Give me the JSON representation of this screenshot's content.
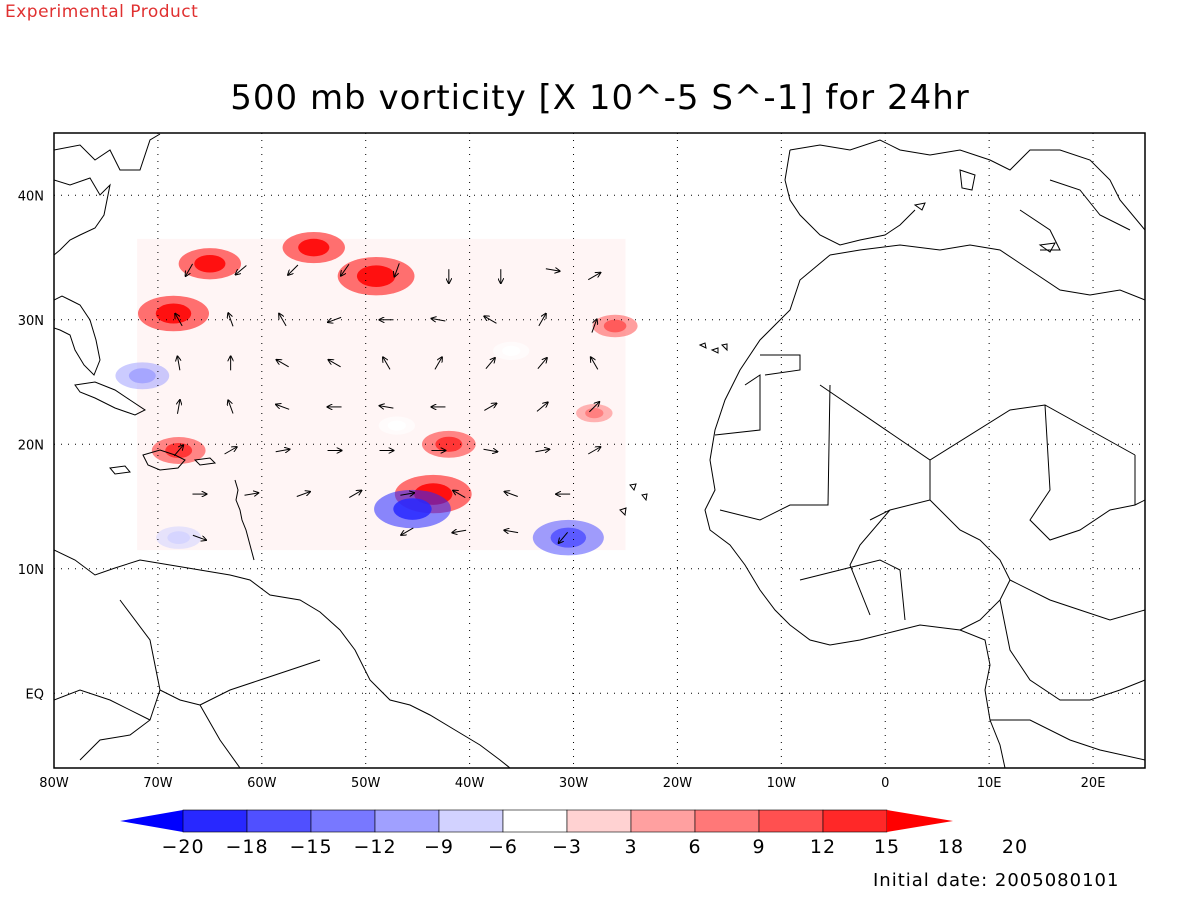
{
  "header": {
    "tag": "Experimental Product",
    "tag_color": "#e03030",
    "title": "500 mb vorticity [X 10^-5 S^-1] for 24hr"
  },
  "map": {
    "projection": "lat-lon",
    "lon_range": [
      -80,
      25
    ],
    "lat_range": [
      -6,
      45
    ],
    "grid": "dotted",
    "x_ticks": [
      "80W",
      "70W",
      "60W",
      "50W",
      "40W",
      "30W",
      "20W",
      "10W",
      "0",
      "10E",
      "20E"
    ],
    "y_ticks": [
      "40N",
      "30N",
      "20N",
      "10N",
      "EQ"
    ],
    "coastline_color": "#000000",
    "vorticity_features": [
      {
        "lon": -68.5,
        "lat": 30.5,
        "value": 18
      },
      {
        "lon": -65,
        "lat": 34.5,
        "value": 15
      },
      {
        "lon": -55,
        "lat": 35.8,
        "value": 15
      },
      {
        "lon": -49,
        "lat": 33.5,
        "value": 20
      },
      {
        "lon": -71.5,
        "lat": 25.5,
        "value": -12
      },
      {
        "lon": -68,
        "lat": 19.5,
        "value": 12
      },
      {
        "lon": -47,
        "lat": 21.5,
        "value": -6
      },
      {
        "lon": -36,
        "lat": 27.5,
        "value": -6
      },
      {
        "lon": -26,
        "lat": 29.5,
        "value": 9
      },
      {
        "lon": -28,
        "lat": 22.5,
        "value": 6
      },
      {
        "lon": -43.5,
        "lat": 16,
        "value": 20
      },
      {
        "lon": -45.5,
        "lat": 14.8,
        "value": -20
      },
      {
        "lon": -30.5,
        "lat": 12.5,
        "value": -18
      },
      {
        "lon": -42,
        "lat": 20,
        "value": 12
      },
      {
        "lon": -68,
        "lat": 12.5,
        "value": -9
      }
    ],
    "wind_vectors": [
      {
        "lon": -67,
        "lat": 34,
        "dir": 210
      },
      {
        "lon": -62,
        "lat": 34,
        "dir": 230
      },
      {
        "lon": -57,
        "lat": 34,
        "dir": 225
      },
      {
        "lon": -52,
        "lat": 34,
        "dir": 215
      },
      {
        "lon": -47,
        "lat": 34,
        "dir": 200
      },
      {
        "lon": -42,
        "lat": 33.5,
        "dir": 180
      },
      {
        "lon": -37,
        "lat": 33.5,
        "dir": 180
      },
      {
        "lon": -32,
        "lat": 34,
        "dir": 100
      },
      {
        "lon": -28,
        "lat": 33.5,
        "dir": 60
      },
      {
        "lon": -68,
        "lat": 30,
        "dir": 330
      },
      {
        "lon": -63,
        "lat": 30,
        "dir": 340
      },
      {
        "lon": -58,
        "lat": 30,
        "dir": 330
      },
      {
        "lon": -53,
        "lat": 30,
        "dir": 250
      },
      {
        "lon": -48,
        "lat": 30,
        "dir": 270
      },
      {
        "lon": -43,
        "lat": 30,
        "dir": 280
      },
      {
        "lon": -38,
        "lat": 30,
        "dir": 300
      },
      {
        "lon": -33,
        "lat": 30,
        "dir": 30
      },
      {
        "lon": -28,
        "lat": 29.5,
        "dir": 20
      },
      {
        "lon": -68,
        "lat": 26.5,
        "dir": 350
      },
      {
        "lon": -63,
        "lat": 26.5,
        "dir": 0
      },
      {
        "lon": -58,
        "lat": 26.5,
        "dir": 300
      },
      {
        "lon": -53,
        "lat": 26.5,
        "dir": 300
      },
      {
        "lon": -48,
        "lat": 26.5,
        "dir": 330
      },
      {
        "lon": -43,
        "lat": 26.5,
        "dir": 30
      },
      {
        "lon": -38,
        "lat": 26.5,
        "dir": 40
      },
      {
        "lon": -33,
        "lat": 26.5,
        "dir": 40
      },
      {
        "lon": -28,
        "lat": 26.5,
        "dir": 330
      },
      {
        "lon": -68,
        "lat": 23,
        "dir": 10
      },
      {
        "lon": -63,
        "lat": 23,
        "dir": 340
      },
      {
        "lon": -58,
        "lat": 23,
        "dir": 290
      },
      {
        "lon": -53,
        "lat": 23,
        "dir": 270
      },
      {
        "lon": -48,
        "lat": 23,
        "dir": 280
      },
      {
        "lon": -43,
        "lat": 23,
        "dir": 270
      },
      {
        "lon": -38,
        "lat": 23,
        "dir": 60
      },
      {
        "lon": -33,
        "lat": 23,
        "dir": 50
      },
      {
        "lon": -28,
        "lat": 23,
        "dir": 45
      },
      {
        "lon": -68,
        "lat": 19.5,
        "dir": 40
      },
      {
        "lon": -63,
        "lat": 19.5,
        "dir": 60
      },
      {
        "lon": -58,
        "lat": 19.5,
        "dir": 80
      },
      {
        "lon": -53,
        "lat": 19.5,
        "dir": 90
      },
      {
        "lon": -48,
        "lat": 19.5,
        "dir": 90
      },
      {
        "lon": -43,
        "lat": 19.5,
        "dir": 90
      },
      {
        "lon": -38,
        "lat": 19.5,
        "dir": 100
      },
      {
        "lon": -33,
        "lat": 19.5,
        "dir": 80
      },
      {
        "lon": -28,
        "lat": 19.5,
        "dir": 60
      },
      {
        "lon": -66,
        "lat": 16,
        "dir": 90
      },
      {
        "lon": -61,
        "lat": 16,
        "dir": 80
      },
      {
        "lon": -56,
        "lat": 16,
        "dir": 70
      },
      {
        "lon": -51,
        "lat": 16,
        "dir": 60
      },
      {
        "lon": -46,
        "lat": 16,
        "dir": 80
      },
      {
        "lon": -41,
        "lat": 16,
        "dir": 300
      },
      {
        "lon": -36,
        "lat": 16,
        "dir": 290
      },
      {
        "lon": -31,
        "lat": 16,
        "dir": 270
      },
      {
        "lon": -66,
        "lat": 12.5,
        "dir": 110
      },
      {
        "lon": -46,
        "lat": 13,
        "dir": 240
      },
      {
        "lon": -41,
        "lat": 13,
        "dir": 260
      },
      {
        "lon": -36,
        "lat": 13,
        "dir": 280
      },
      {
        "lon": -31,
        "lat": 12.5,
        "dir": 220
      }
    ]
  },
  "colorbar": {
    "colors": [
      "#0000ff",
      "#2828ff",
      "#5050ff",
      "#7878ff",
      "#a0a0ff",
      "#d2d2ff",
      "#ffffff",
      "#ffd2d2",
      "#ffa0a0",
      "#ff7878",
      "#ff5050",
      "#ff2828",
      "#ff0000"
    ],
    "labels": [
      "-20",
      "-18",
      "-15",
      "-12",
      "-9",
      "-6",
      "-3",
      "3",
      "6",
      "9",
      "12",
      "15",
      "18",
      "20"
    ]
  },
  "footer": {
    "initial_date": "Initial date: 2005080101"
  }
}
